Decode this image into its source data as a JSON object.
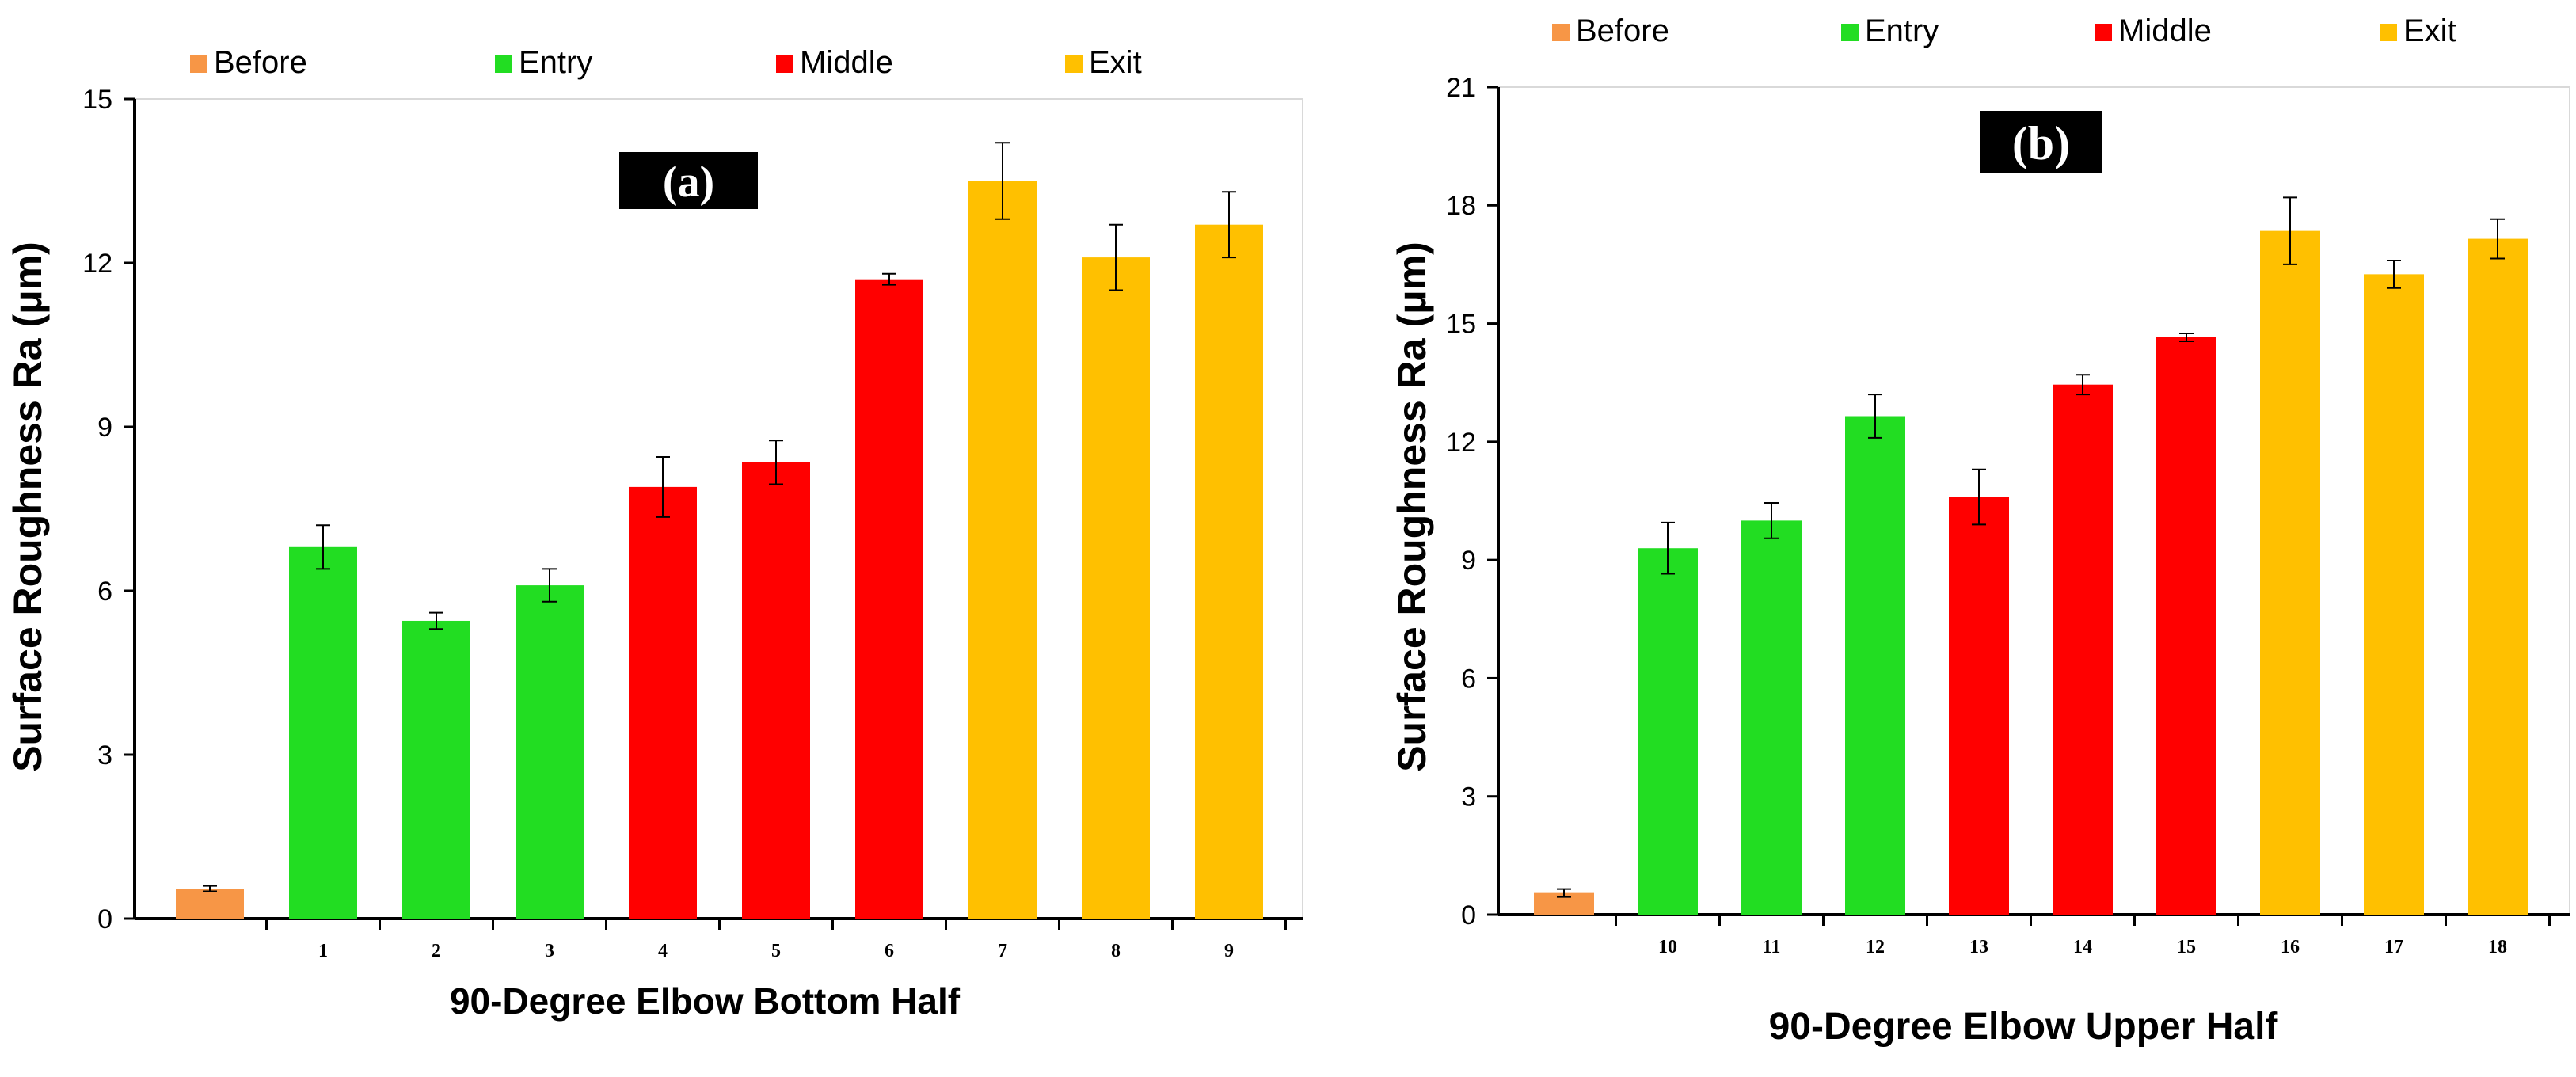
{
  "legend": [
    {
      "label": "Before",
      "color": "#f79646"
    },
    {
      "label": "Entry",
      "color": "#22dd22"
    },
    {
      "label": "Middle",
      "color": "#ff0000"
    },
    {
      "label": "Exit",
      "color": "#ffc000"
    }
  ],
  "chart_data": [
    {
      "type": "bar",
      "panel_label": "(a)",
      "title": "",
      "xlabel": "90-Degree Elbow Bottom Half",
      "ylabel": "Surface Roughness Ra (μm)",
      "ylim": [
        0,
        15
      ],
      "yticks": [
        "0",
        "3",
        "6",
        "9",
        "12",
        "15"
      ],
      "categories": [
        "",
        "1",
        "2",
        "3",
        "4",
        "5",
        "6",
        "7",
        "8",
        "9"
      ],
      "groups": [
        "Before",
        "Entry",
        "Entry",
        "Entry",
        "Middle",
        "Middle",
        "Middle",
        "Exit",
        "Exit",
        "Exit"
      ],
      "values": [
        0.55,
        6.8,
        5.45,
        6.1,
        7.9,
        8.35,
        11.7,
        13.5,
        12.1,
        12.7
      ],
      "errors": [
        0.05,
        0.4,
        0.15,
        0.3,
        0.55,
        0.4,
        0.1,
        0.7,
        0.6,
        0.6
      ],
      "grid": false,
      "legend_position": "top"
    },
    {
      "type": "bar",
      "panel_label": "(b)",
      "title": "",
      "xlabel": "90-Degree Elbow Upper Half",
      "ylabel": "Surface Roughness Ra (μm)",
      "ylim": [
        0,
        21
      ],
      "yticks": [
        "0",
        "3",
        "6",
        "9",
        "12",
        "15",
        "18",
        "21"
      ],
      "categories": [
        "",
        "10",
        "11",
        "12",
        "13",
        "14",
        "15",
        "16",
        "17",
        "18"
      ],
      "groups": [
        "Before",
        "Entry",
        "Entry",
        "Entry",
        "Middle",
        "Middle",
        "Middle",
        "Exit",
        "Exit",
        "Exit"
      ],
      "values": [
        0.55,
        9.3,
        10.0,
        12.65,
        10.6,
        13.45,
        14.65,
        17.35,
        16.25,
        17.15
      ],
      "errors": [
        0.1,
        0.65,
        0.45,
        0.55,
        0.7,
        0.25,
        0.1,
        0.85,
        0.35,
        0.5
      ],
      "grid": false,
      "legend_position": "top"
    }
  ]
}
